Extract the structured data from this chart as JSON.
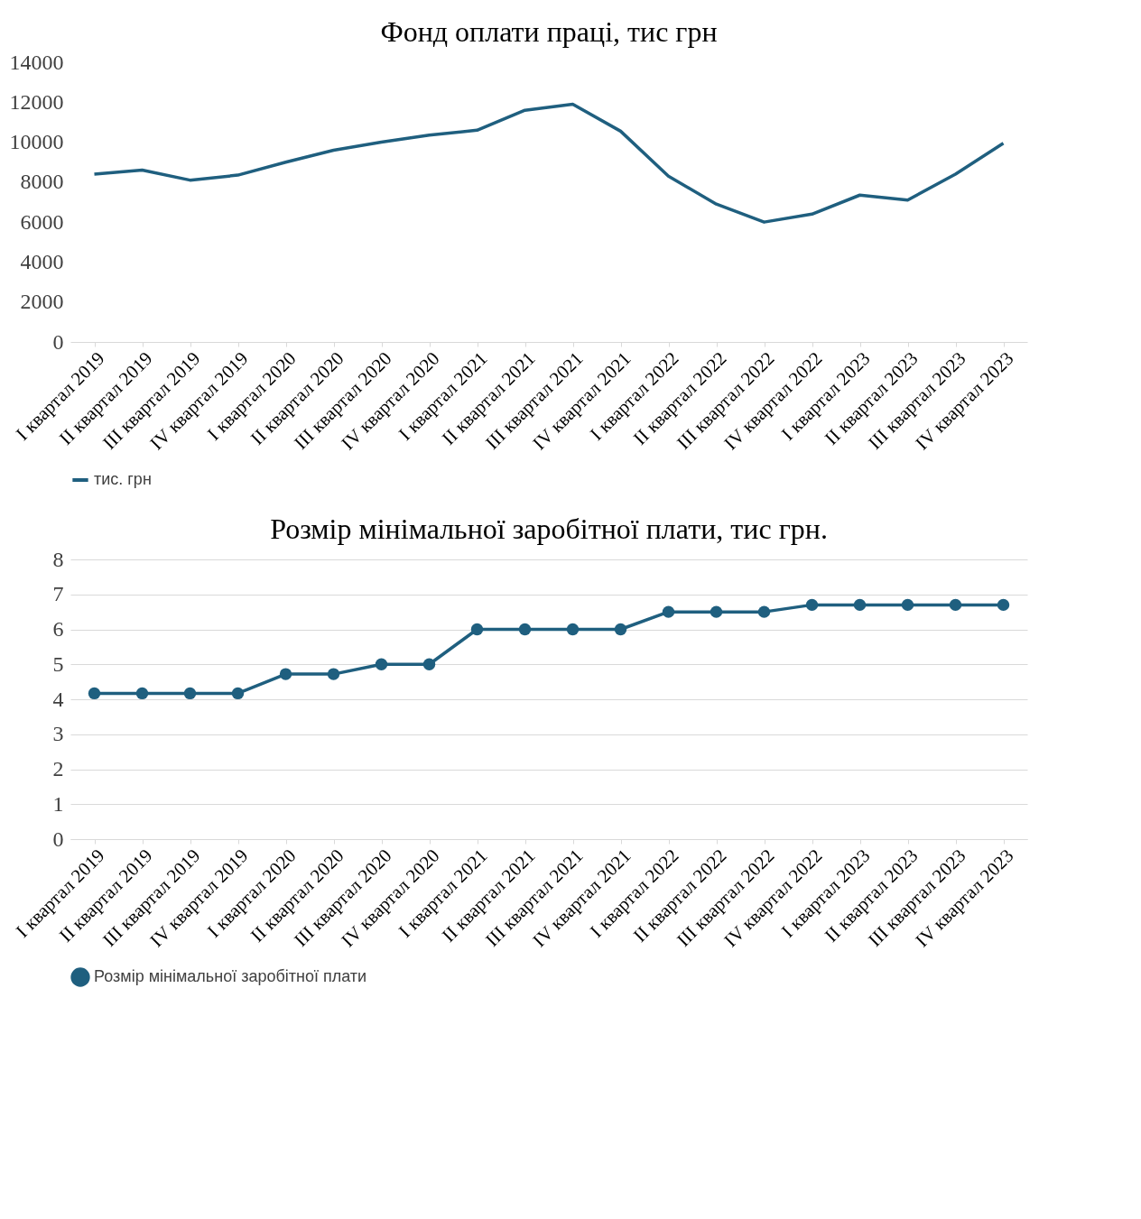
{
  "chart_data": [
    {
      "type": "line",
      "title": "Фонд оплати праці, тис грн",
      "categories": [
        "I квартал 2019",
        "II квартал 2019",
        "III квартал 2019",
        "IV квартал 2019",
        "I квартал 2020",
        "II квартал 2020",
        "III квартал 2020",
        "IV квартал 2020",
        "I квартал 2021",
        "II квартал 2021",
        "III квартал 2021",
        "IV квартал 2021",
        "I квартал 2022",
        "II квартал 2022",
        "III квартал 2022",
        "IV квартал 2022",
        "I квартал 2023",
        "II квартал 2023",
        "III квартал 2023",
        "IV квартал 2023"
      ],
      "series": [
        {
          "name": "тис. грн",
          "color": "#1f5f7f",
          "values": [
            8400,
            8600,
            8100,
            8350,
            9000,
            9600,
            10000,
            10350,
            10600,
            11600,
            11900,
            10550,
            8300,
            6900,
            6000,
            6400,
            7350,
            7100,
            8400,
            9950
          ]
        }
      ],
      "ylim": [
        0,
        14000
      ],
      "yticks": [
        0,
        2000,
        4000,
        6000,
        8000,
        10000,
        12000,
        14000
      ],
      "grid": false,
      "legend": "bottom",
      "marker": "none"
    },
    {
      "type": "line",
      "title": "Розмір мінімальної заробітної плати, тис грн.",
      "categories": [
        "I квартал 2019",
        "II квартал 2019",
        "III квартал 2019",
        "IV квартал 2019",
        "I квартал 2020",
        "II квартал 2020",
        "III квартал 2020",
        "IV квартал 2020",
        "I квартал 2021",
        "II квартал 2021",
        "III квартал 2021",
        "IV квартал 2021",
        "I квартал 2022",
        "II квартал 2022",
        "III квартал 2022",
        "IV квартал 2022",
        "I квартал 2023",
        "II квартал 2023",
        "III квартал 2023",
        "IV квартал 2023"
      ],
      "series": [
        {
          "name": "Розмір мінімальної заробітної плати",
          "color": "#1f5f7f",
          "values": [
            4.17,
            4.17,
            4.17,
            4.17,
            4.72,
            4.72,
            5.0,
            5.0,
            6.0,
            6.0,
            6.0,
            6.0,
            6.5,
            6.5,
            6.5,
            6.7,
            6.7,
            6.7,
            6.7,
            6.7
          ]
        }
      ],
      "ylim": [
        0,
        8
      ],
      "yticks": [
        0,
        1,
        2,
        3,
        4,
        5,
        6,
        7,
        8
      ],
      "grid": "y",
      "legend": "bottom",
      "marker": "circle"
    }
  ]
}
